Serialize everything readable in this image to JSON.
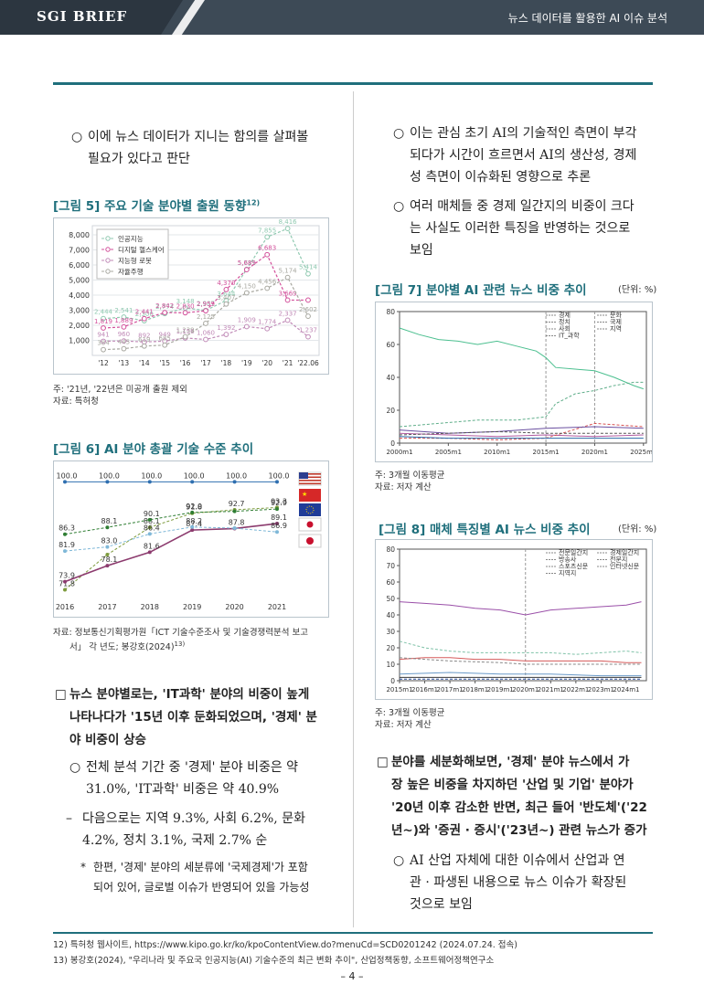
{
  "header": {
    "brand": "SGI BRIEF",
    "title": "뉴스 데이터를 활용한 AI 이슈 분석"
  },
  "left": {
    "intro_bullet": [
      "○",
      "이에 뉴스 데이터가 지니는 함의를 살펴볼",
      "필요가 있다고 판단"
    ],
    "fig5": {
      "title": "[그림 5] 주요 기술 분야별 출원 동향",
      "title_sup": "12)",
      "note1": "주: '21년, '22년은 미공개 출원 제외",
      "note2": "자료: 특허청"
    },
    "fig6": {
      "title": "[그림 6] AI 분야 총괄 기술 수준 추이",
      "note1": "자료: 정보통신기획평가원「ICT 기술수준조사 및 기술경쟁력분석 보고",
      "note2": "서」 각 년도; 봉강호(2024)",
      "note2_sup": "13)"
    },
    "sq1": [
      "□",
      "뉴스 분야별로는, 'IT과학' 분야의 비중이 높게",
      "나타나다가 '15년 이후 둔화되었으며, '경제' 분",
      "야 비중이 상승"
    ],
    "o1": [
      "○",
      "전체 분석 기간 중 '경제' 분야 비중은 약",
      "31.0%, 'IT과학' 비중은 약 40.9%"
    ],
    "dash1": [
      "–",
      "다음으로는 지역 9.3%, 사회 6.2%, 문화",
      "4.2%, 정치 3.1%, 국제 2.7% 순"
    ],
    "star1": [
      "*",
      "한편, '경제' 분야의 세분류에 '국제경제'가 포함",
      "되어 있어, 글로벌 이슈가 반영되어 있을 가능성"
    ]
  },
  "right": {
    "o1": [
      "○",
      "이는 관심 초기 AI의 기술적인 측면이 부각",
      "되다가 시간이 흐르면서 AI의 생산성, 경제",
      "성 측면이 이슈화된 영향으로 추론"
    ],
    "o2": [
      "○",
      "여러 매체들 중 경제 일간지의 비중이 크다",
      "는 사실도 이러한 특징을 반영하는 것으로",
      "보임"
    ],
    "fig7": {
      "title": "[그림 7] 분야별 AI 관련 뉴스 비중 추이",
      "unit": "(단위: %)",
      "note1": "주: 3개월 이동평균",
      "note2": "자료: 저자 계산"
    },
    "fig8": {
      "title": "[그림 8] 매체 특징별 AI 뉴스 비중 추이",
      "unit": "(단위: %)",
      "note1": "주: 3개월 이동평균",
      "note2": "자료: 저자 계산"
    },
    "sq1": [
      "□",
      "분야를 세분화해보면, '경제' 분야 뉴스에서 가",
      "장 높은 비중을 차지하던 '산업 및 기업' 분야가",
      "'20년 이후 감소한 반면, 최근 들어 '반도체'('22",
      "년~)와 '증권 · 증시'('23년~) 관련 뉴스가 증가"
    ],
    "o3": [
      "○",
      "AI 산업 자체에 대한 이슈에서 산업과 연",
      "관 · 파생된 내용으로 뉴스 이슈가 확장된",
      "것으로 보임"
    ]
  },
  "footnotes": [
    "12) 특허청 웹사이트, https://www.kipo.go.kr/ko/kpoContentView.do?menuCd=SCD0201242 (2024.07.24. 접속)",
    "13) 봉강호(2024), \"우리나라 및 주요국 인공지능(AI) 기술수준의 최근 변화 추이\", 산업정책동향, 소프트웨어정책연구소"
  ],
  "page_number": "– 4 –",
  "chart_data": [
    {
      "id": "fig5",
      "type": "line",
      "categories": [
        "'12",
        "'13",
        "'14",
        "'15",
        "'16",
        "'17",
        "'18",
        "'19",
        "'20",
        "'21",
        "'22.06"
      ],
      "ylim": [
        0,
        8000
      ],
      "yticks": [
        "1,000",
        "2,000",
        "3,000",
        "4,000",
        "5,000",
        "6,000",
        "7,000",
        "8,000"
      ],
      "series": [
        {
          "name": "인공지능",
          "color": "#8fc9b0",
          "values": [
            2444,
            2541,
            2300,
            2774,
            3148,
            2987,
            3644,
            5711,
            7855,
            8416,
            5414
          ],
          "labels": [
            "2,444",
            "2,541",
            "2,300",
            "2,774",
            "3,148",
            "2,987",
            "3,644",
            "5,711",
            "7,855",
            "8,416",
            "5,414"
          ]
        },
        {
          "name": "디지털 헬스케어",
          "color": "#d24f9a",
          "values": [
            1819,
            1889,
            2441,
            2842,
            2830,
            2959,
            4370,
            5689,
            6683,
            3669,
            3669
          ],
          "labels": [
            "1,819",
            "1,889",
            "2,441",
            "2,842",
            "2,830",
            "2,959",
            "4,370",
            "5,689",
            "6,683",
            "3,669",
            ""
          ]
        },
        {
          "name": "지능형 로봇",
          "color": "#c08ab7",
          "values": [
            941,
            960,
            892,
            949,
            1156,
            1060,
            1392,
            1909,
            1774,
            2337,
            1237
          ],
          "labels": [
            "941",
            "960",
            "892",
            "949",
            "1,156",
            "1,060",
            "1,392",
            "1,909",
            "1,774",
            "2,337",
            "1,237"
          ]
        },
        {
          "name": "자율주행",
          "color": "#a8a8a0",
          "values": [
            384,
            445,
            619,
            685,
            1239,
            2125,
            3407,
            4150,
            4456,
            5174,
            2602
          ],
          "labels": [
            "384",
            "445",
            "619",
            "685",
            "1,239",
            "2,125",
            "3,407",
            "4,150",
            "4,456",
            "5,174",
            "2,602"
          ]
        }
      ]
    },
    {
      "id": "fig6",
      "type": "line",
      "categories": [
        "2016",
        "2017",
        "2018",
        "2019",
        "2020",
        "2021"
      ],
      "ylim": [
        70,
        102
      ],
      "series": [
        {
          "name": "미국",
          "color": "#2f6fb0",
          "values": [
            100.0,
            100.0,
            100.0,
            100.0,
            100.0,
            100.0
          ],
          "labels": [
            "100.0",
            "100.0",
            "100.0",
            "100.0",
            "100.0",
            "100.0"
          ]
        },
        {
          "name": "중국",
          "color": "#7d9b3c",
          "values": [
            71.8,
            81.0,
            88.1,
            91.8,
            92.7,
            93.3
          ],
          "labels": [
            "71.8",
            "",
            "88.1",
            "91.8",
            "92.7",
            "93.3"
          ]
        },
        {
          "name": "EU",
          "color": "#2e7d32",
          "values": [
            86.3,
            88.1,
            90.1,
            92.0,
            92.3,
            92.9
          ],
          "labels": [
            "86.3",
            "88.1",
            "90.1",
            "92.0",
            "",
            "92.9"
          ]
        },
        {
          "name": "한국",
          "color": "#8c3b6e",
          "values": [
            73.9,
            78.1,
            81.6,
            87.4,
            87.8,
            89.1
          ],
          "labels": [
            "73.9",
            "78.1",
            "81.6",
            "87.4",
            "87.8",
            "89.1"
          ]
        },
        {
          "name": "일본",
          "color": "#7fb8d8",
          "values": [
            81.9,
            83.0,
            86.4,
            88.2,
            87.9,
            86.9
          ],
          "labels": [
            "81.9",
            "83.0",
            "86.4",
            "88.2",
            "",
            "86.9"
          ]
        }
      ]
    },
    {
      "id": "fig7",
      "type": "line",
      "xticks": [
        "2000m1",
        "2005m1",
        "2010m1",
        "2015m1",
        "2020m1",
        "2025m1"
      ],
      "yticks": [
        "0",
        "20",
        "40",
        "60",
        "80"
      ],
      "ylim": [
        0,
        80
      ],
      "legend": [
        "경제",
        "정치",
        "사회",
        "IT_과학",
        "문화",
        "국제",
        "지역"
      ],
      "series": [
        {
          "name": "IT_과학",
          "color": "#4bbf8f",
          "x": [
            2000,
            2002,
            2004,
            2006,
            2008,
            2010,
            2012,
            2014,
            2015,
            2016,
            2018,
            2020,
            2022,
            2024,
            2025
          ],
          "values": [
            70,
            66,
            63,
            62,
            60,
            62,
            59,
            56,
            52,
            46,
            45,
            44,
            40,
            35,
            33
          ]
        },
        {
          "name": "경제",
          "color": "#5fae8a",
          "x": [
            2000,
            2004,
            2008,
            2012,
            2015,
            2016,
            2018,
            2020,
            2022,
            2024,
            2025
          ],
          "values": [
            10,
            12,
            14,
            14,
            16,
            24,
            30,
            32,
            35,
            37,
            37
          ]
        },
        {
          "name": "문화",
          "color": "#b05aa0",
          "x": [
            2000,
            2005,
            2010,
            2015,
            2020,
            2025
          ],
          "values": [
            6,
            5,
            4,
            5,
            4,
            5
          ]
        },
        {
          "name": "국제",
          "color": "#d65050",
          "x": [
            2000,
            2005,
            2010,
            2015,
            2020,
            2025
          ],
          "values": [
            3,
            3,
            2,
            3,
            12,
            10
          ]
        },
        {
          "name": "지역",
          "color": "#6a4fa0",
          "x": [
            2000,
            2005,
            2010,
            2015,
            2020,
            2025
          ],
          "values": [
            8,
            6,
            7,
            9,
            10,
            9
          ]
        },
        {
          "name": "사회",
          "color": "#555",
          "x": [
            2000,
            2005,
            2010,
            2015,
            2020,
            2025
          ],
          "values": [
            5,
            6,
            7,
            6,
            6,
            6
          ]
        },
        {
          "name": "정치",
          "color": "#2b6aa8",
          "x": [
            2000,
            2005,
            2010,
            2015,
            2020,
            2025
          ],
          "values": [
            4,
            3,
            3,
            3,
            3,
            3
          ]
        }
      ]
    },
    {
      "id": "fig8",
      "type": "line",
      "xticks": [
        "2015m1",
        "2016m1",
        "2017m1",
        "2018m1",
        "2019m1",
        "2020m1",
        "2021m1",
        "2022m1",
        "2023m1",
        "2024m1"
      ],
      "yticks": [
        "0",
        "10",
        "20",
        "30",
        "40",
        "50",
        "60",
        "70",
        "80"
      ],
      "ylim": [
        0,
        80
      ],
      "legend": [
        "전문일간지",
        "방송사",
        "스포츠신문",
        "지역지",
        "경제일간지",
        "전문지",
        "인터넷신문"
      ],
      "series": [
        {
          "name": "경제일간지",
          "color": "#9a4fa8",
          "x": [
            2015,
            2016,
            2017,
            2018,
            2019,
            2020,
            2021,
            2022,
            2023,
            2024,
            2024.6
          ],
          "values": [
            48,
            47,
            46,
            44,
            43,
            40,
            43,
            44,
            45,
            46,
            48
          ]
        },
        {
          "name": "전문일간지",
          "color": "#7fc2a8",
          "x": [
            2015,
            2016,
            2017,
            2018,
            2019,
            2020,
            2021,
            2022,
            2023,
            2024,
            2024.6
          ],
          "values": [
            24,
            20,
            18,
            17,
            17,
            17,
            17,
            16,
            17,
            18,
            17
          ]
        },
        {
          "name": "인터넷신문",
          "color": "#d55a5a",
          "x": [
            2015,
            2016,
            2017,
            2018,
            2019,
            2020,
            2021,
            2022,
            2023,
            2024,
            2024.6
          ],
          "values": [
            13,
            14,
            14,
            13,
            13,
            12,
            12,
            12,
            12,
            11,
            11
          ]
        },
        {
          "name": "전문지",
          "color": "#888",
          "x": [
            2015,
            2017,
            2019,
            2020,
            2022,
            2024,
            2024.6
          ],
          "values": [
            14,
            12,
            11,
            10,
            10,
            10,
            10
          ]
        },
        {
          "name": "방송사",
          "color": "#6a9ac8",
          "x": [
            2015,
            2017,
            2019,
            2021,
            2023,
            2024.6
          ],
          "values": [
            4,
            5,
            4,
            4,
            3,
            3
          ]
        },
        {
          "name": "스포츠신문",
          "color": "#2b4f9a",
          "x": [
            2015,
            2017,
            2019,
            2021,
            2023,
            2024.6
          ],
          "values": [
            1,
            1,
            1,
            1,
            1,
            1
          ]
        },
        {
          "name": "지역지",
          "color": "#3a3a3a",
          "x": [
            2015,
            2017,
            2019,
            2021,
            2023,
            2024.6
          ],
          "values": [
            2,
            2,
            2,
            2,
            2,
            2
          ]
        }
      ]
    }
  ]
}
